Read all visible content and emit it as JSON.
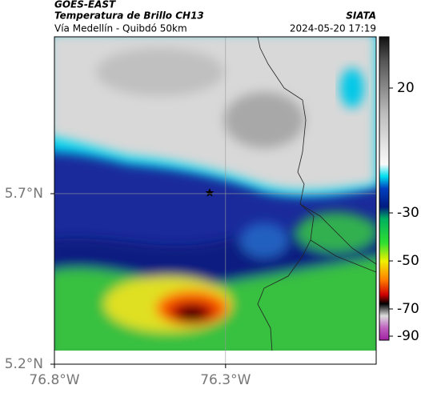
{
  "header": {
    "source": "GOES-EAST",
    "title": "Temperatura de Brillo CH13",
    "subtitle": "Vía Medellín - Quibdó 50km",
    "credit": "SIATA",
    "timestamp": "2024-05-20 17:19"
  },
  "map": {
    "xlim": [
      -76.8,
      -75.86
    ],
    "ylim": [
      5.2,
      6.16
    ],
    "xticks": [
      {
        "value": -76.8,
        "label": "76.8°W"
      },
      {
        "value": -76.3,
        "label": "76.3°W"
      }
    ],
    "yticks": [
      {
        "value": 5.2,
        "label": "5.2°N"
      },
      {
        "value": 5.7,
        "label": "5.7°N"
      }
    ],
    "grid": true
  },
  "colorbar": {
    "ticks": [
      20,
      -30,
      -50,
      -70,
      -90
    ]
  }
}
